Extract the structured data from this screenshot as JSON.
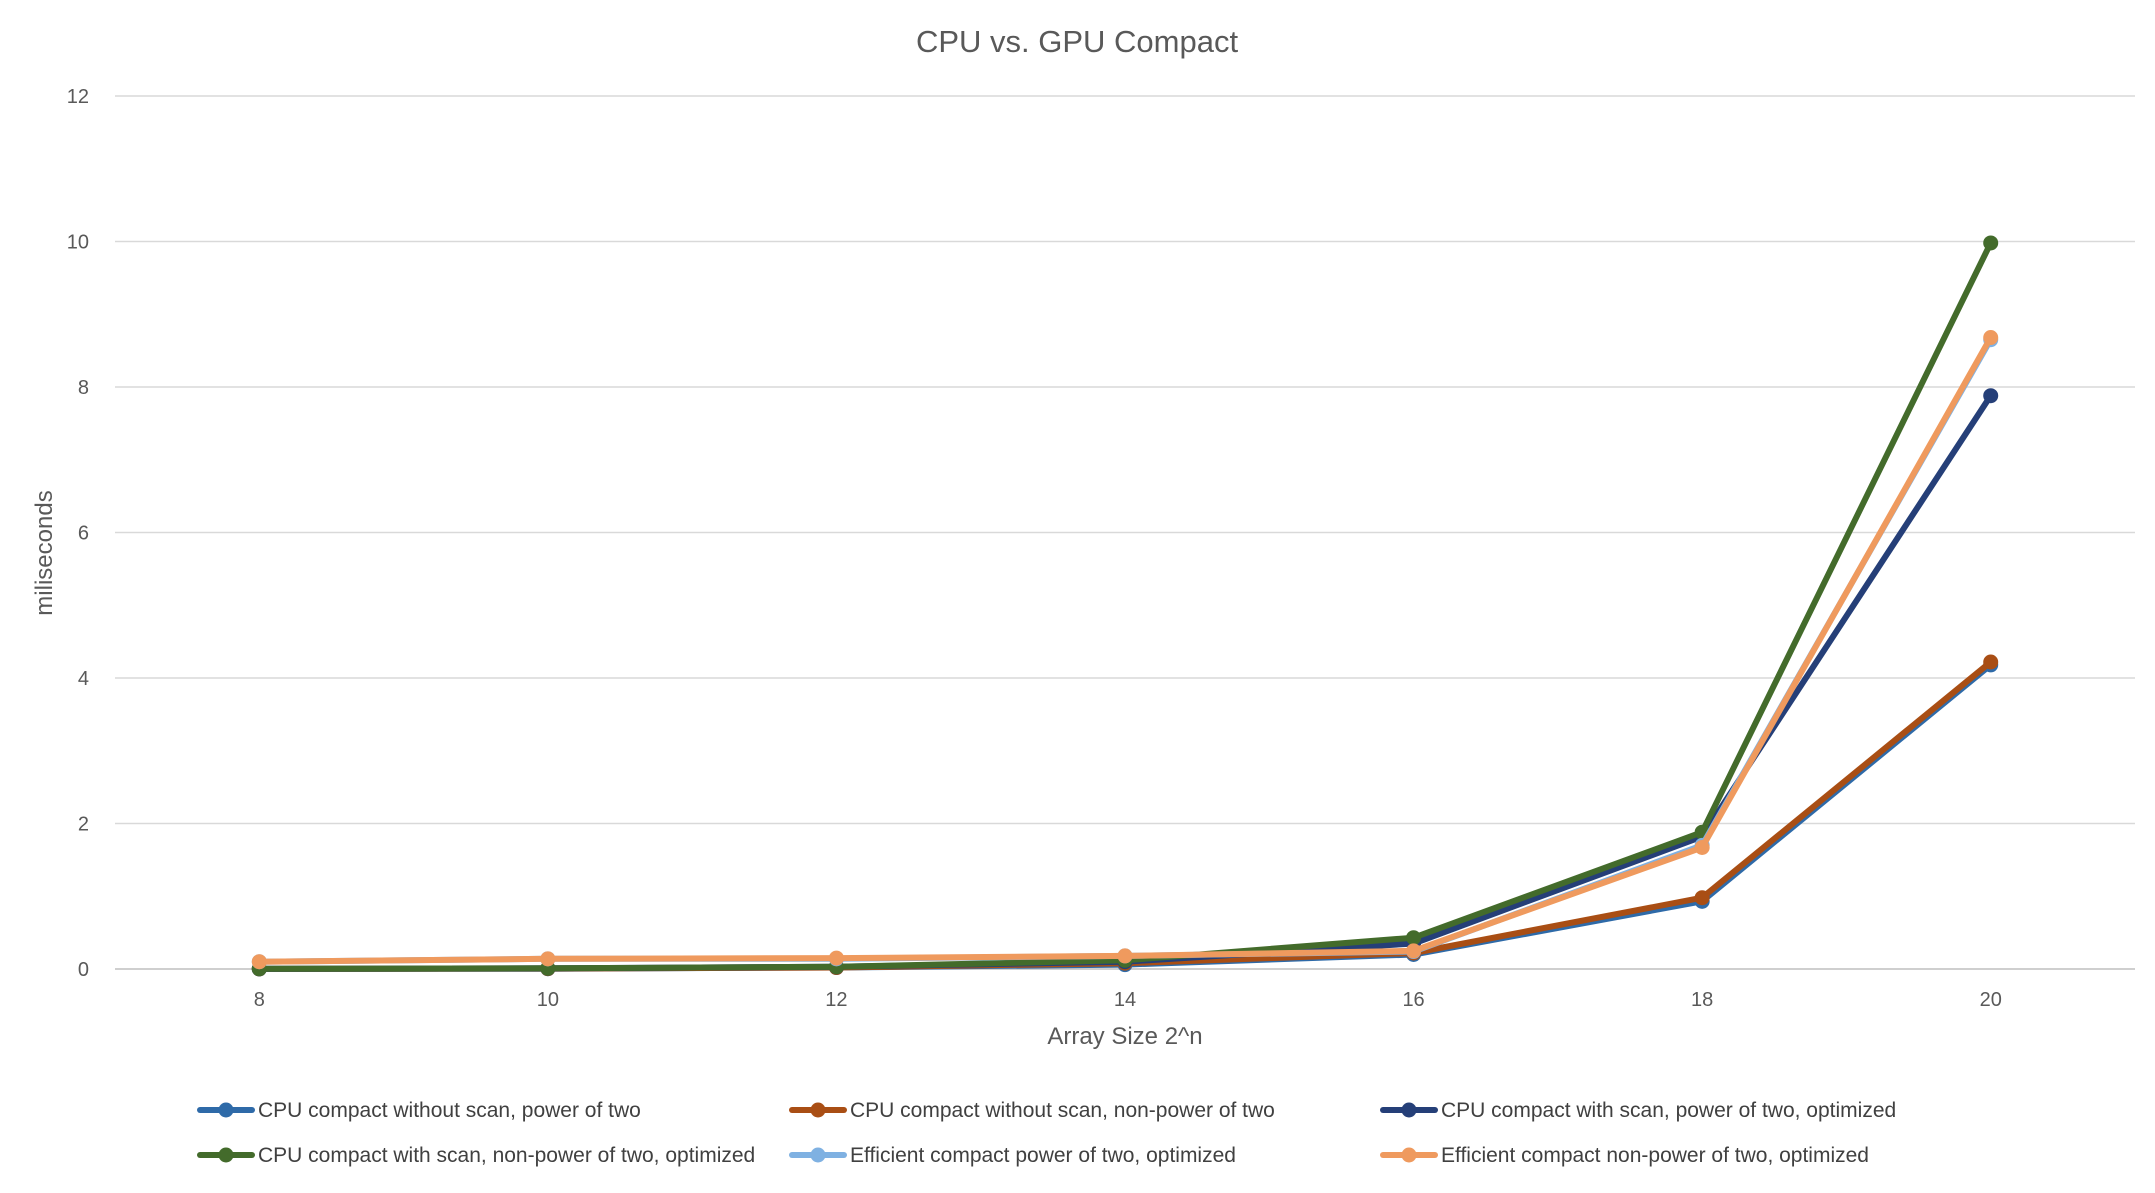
{
  "chart_data": {
    "type": "line",
    "title": "CPU vs. GPU Compact",
    "xlabel": "Array Size 2^n",
    "ylabel": "miliseconds",
    "x": [
      8,
      10,
      12,
      14,
      16,
      18,
      20
    ],
    "x_ticks": [
      "8",
      "10",
      "12",
      "14",
      "16",
      "18",
      "20"
    ],
    "y_ticks": [
      "0",
      "2",
      "4",
      "6",
      "8",
      "10",
      "12"
    ],
    "ylim": [
      0,
      12
    ],
    "grid": true,
    "legend_position": "bottom",
    "series": [
      {
        "name": "CPU compact without scan, power of two",
        "color": "#2e6aa8",
        "values": [
          0.001,
          0.004,
          0.02,
          0.06,
          0.2,
          0.93,
          4.18
        ]
      },
      {
        "name": "CPU compact without scan, non-power of two",
        "color": "#a94e14",
        "values": [
          0.001,
          0.005,
          0.02,
          0.08,
          0.22,
          0.98,
          4.22
        ]
      },
      {
        "name": "CPU compact with scan, power of two, optimized",
        "color": "#253f78",
        "values": [
          0.002,
          0.01,
          0.03,
          0.1,
          0.35,
          1.82,
          7.88
        ]
      },
      {
        "name": "CPU compact with scan, non-power of two, optimized",
        "color": "#436b2b",
        "values": [
          0.003,
          0.01,
          0.03,
          0.12,
          0.43,
          1.88,
          9.98
        ]
      },
      {
        "name": "Efficient compact power of two, optimized",
        "color": "#7fb1e2",
        "values": [
          0.1,
          0.14,
          0.14,
          0.18,
          0.24,
          1.7,
          8.65
        ]
      },
      {
        "name": "Efficient compact non-power of two, optimized",
        "color": "#ef9a5e",
        "values": [
          0.1,
          0.14,
          0.15,
          0.18,
          0.25,
          1.67,
          8.68
        ]
      }
    ]
  }
}
